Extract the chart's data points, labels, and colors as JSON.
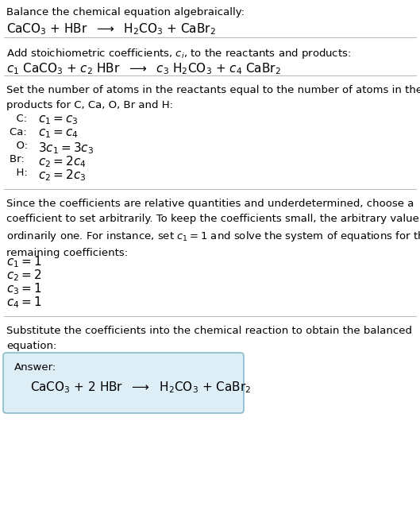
{
  "bg_color": "#ffffff",
  "text_color": "#000000",
  "line_color": "#bbbbbb",
  "answer_box_facecolor": "#ddeef6",
  "answer_box_edgecolor": "#88bbcc",
  "font_size": 9.5,
  "font_size_eq": 11,
  "sections": {
    "s1_title": "Balance the chemical equation algebraically:",
    "s1_eq": "CaCO$_3$ + HBr  $\\longrightarrow$  H$_2$CO$_3$ + CaBr$_2$",
    "s2_title": "Add stoichiometric coefficients, $c_i$, to the reactants and products:",
    "s2_eq": "$c_1$ CaCO$_3$ + $c_2$ HBr  $\\longrightarrow$  $c_3$ H$_2$CO$_3$ + $c_4$ CaBr$_2$",
    "s3_title": "Set the number of atoms in the reactants equal to the number of atoms in the\nproducts for C, Ca, O, Br and H:",
    "s3_eqs": [
      [
        "  C: ",
        "$c_1 = c_3$"
      ],
      [
        "Ca: ",
        "$c_1 = c_4$"
      ],
      [
        "  O: ",
        "$3 c_1 = 3 c_3$"
      ],
      [
        "Br: ",
        "$c_2 = 2 c_4$"
      ],
      [
        "  H: ",
        "$c_2 = 2 c_3$"
      ]
    ],
    "s4_title": "Since the coefficients are relative quantities and underdetermined, choose a\ncoefficient to set arbitrarily. To keep the coefficients small, the arbitrary value is\nordinarily one. For instance, set $c_1 = 1$ and solve the system of equations for the\nremaining coefficients:",
    "s4_eqs": [
      "$c_1 = 1$",
      "$c_2 = 2$",
      "$c_3 = 1$",
      "$c_4 = 1$"
    ],
    "s5_title": "Substitute the coefficients into the chemical reaction to obtain the balanced\nequation:",
    "answer_label": "Answer:",
    "answer_eq": "CaCO$_3$ + 2 HBr  $\\longrightarrow$  H$_2$CO$_3$ + CaBr$_2$"
  }
}
